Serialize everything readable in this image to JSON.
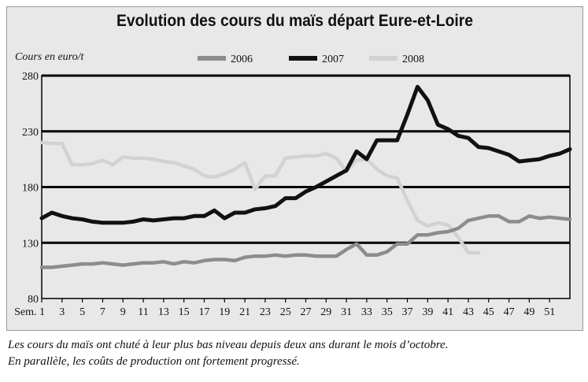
{
  "chart_data": {
    "type": "line",
    "title": "Evolution des cours du maïs départ Eure-et-Loire",
    "ylabel": "Cours en euro/t",
    "xlabel": "",
    "ylim": [
      80,
      280
    ],
    "yticks": [
      80,
      130,
      180,
      230,
      280
    ],
    "xlim": [
      1,
      53
    ],
    "xtick_values": [
      1,
      3,
      5,
      7,
      9,
      11,
      13,
      15,
      17,
      19,
      21,
      23,
      25,
      27,
      29,
      31,
      33,
      35,
      37,
      39,
      41,
      43,
      45,
      47,
      49,
      51
    ],
    "xtick_labels": [
      "Sem. 1",
      "3",
      "5",
      "7",
      "9",
      "11",
      "13",
      "15",
      "17",
      "19",
      "21",
      "23",
      "25",
      "27",
      "29",
      "31",
      "33",
      "35",
      "37",
      "39",
      "41",
      "43",
      "45",
      "47",
      "49",
      "51"
    ],
    "grid": "horizontal",
    "legend_position": "top",
    "series": [
      {
        "name": "2006",
        "color": "#8c8c8c",
        "values": [
          108,
          108,
          109,
          110,
          111,
          111,
          112,
          111,
          110,
          111,
          112,
          112,
          113,
          111,
          113,
          112,
          114,
          115,
          115,
          114,
          117,
          118,
          118,
          119,
          118,
          119,
          119,
          118,
          118,
          118,
          124,
          129,
          119,
          119,
          122,
          129,
          129,
          137,
          137,
          139,
          140,
          143,
          150,
          152,
          154,
          154,
          149,
          149,
          154,
          152,
          153,
          152,
          151
        ]
      },
      {
        "name": "2007",
        "color": "#111111",
        "values": [
          152,
          157,
          154,
          152,
          151,
          149,
          148,
          148,
          148,
          149,
          151,
          150,
          151,
          152,
          152,
          154,
          154,
          159,
          152,
          157,
          157,
          160,
          161,
          163,
          170,
          170,
          176,
          180,
          185,
          190,
          195,
          212,
          205,
          222,
          222,
          222,
          245,
          270,
          258,
          236,
          232,
          226,
          224,
          216,
          215,
          212,
          209,
          203,
          204,
          205,
          208,
          210,
          214
        ]
      },
      {
        "name": "2008",
        "color": "#d2d2d2",
        "values": [
          220,
          219,
          219,
          200,
          200,
          201,
          204,
          200,
          207,
          206,
          206,
          205,
          203,
          202,
          199,
          196,
          190,
          189,
          192,
          196,
          202,
          178,
          190,
          190,
          206,
          207,
          208,
          208,
          210,
          206,
          194,
          204,
          205,
          196,
          190,
          188,
          168,
          150,
          145,
          148,
          146,
          135,
          121,
          121
        ]
      }
    ]
  },
  "caption": {
    "line1": "Les cours du maïs ont chuté à leur plus bas niveau depuis deux ans durant le mois d’octobre.",
    "line2": "En parallèle, les coûts de production ont fortement progressé."
  }
}
